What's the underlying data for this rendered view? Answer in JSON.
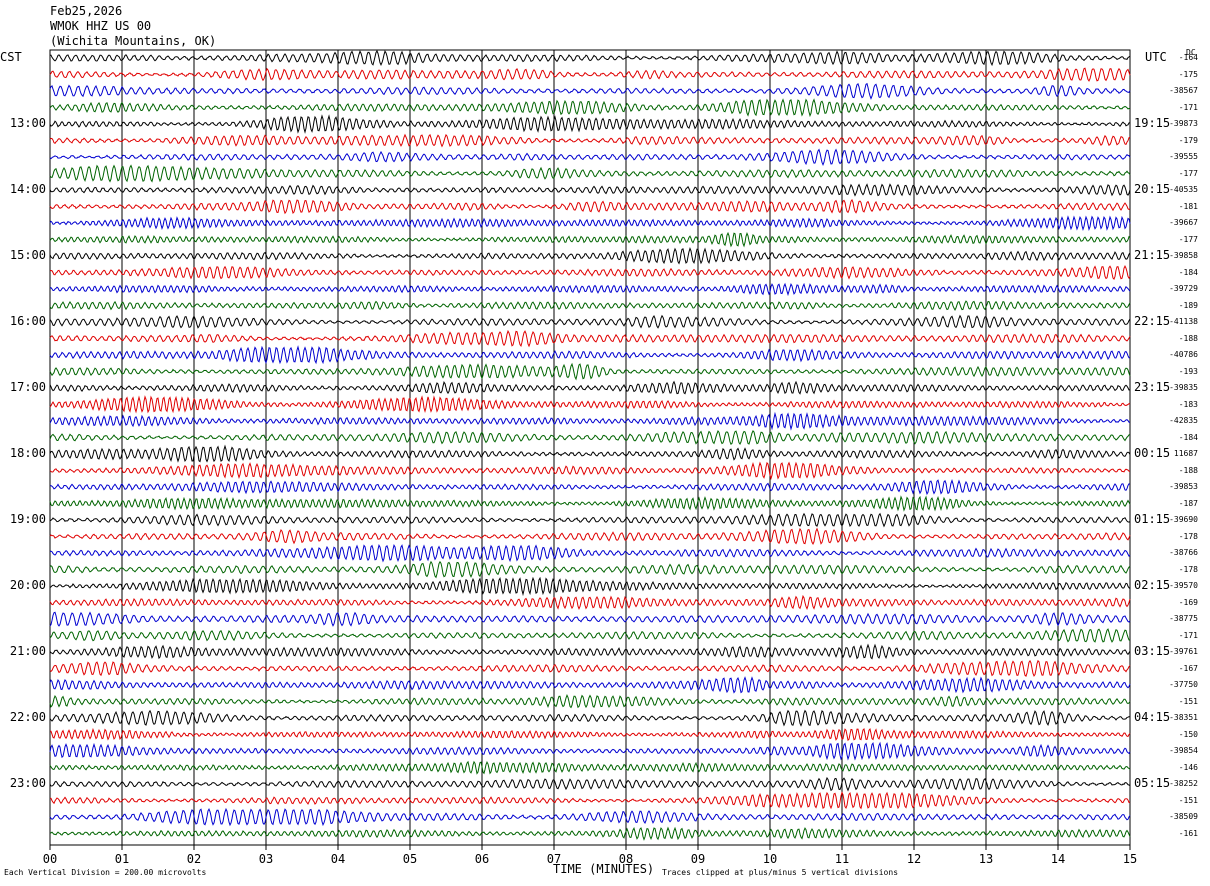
{
  "header": {
    "date": "Feb25,2026",
    "station": "WMOK HHZ US 00",
    "location": "(Wichita Mountains, OK)"
  },
  "left_tz": "CST",
  "right_tz": "UTC",
  "dc_label": "DC",
  "colors": {
    "trace": [
      "#000000",
      "#e00000",
      "#0000d0",
      "#006400"
    ],
    "grid": "#000000"
  },
  "chart_data": {
    "type": "line",
    "title": "Feb25,2026 WMOK HHZ US 00 (Wichita Mountains, OK)",
    "xlabel": "TIME (MINUTES)",
    "x_ticks": [
      "00",
      "01",
      "02",
      "03",
      "04",
      "05",
      "06",
      "07",
      "08",
      "09",
      "10",
      "11",
      "12",
      "13",
      "14",
      "15"
    ],
    "xlim": [
      0,
      15
    ],
    "traces_per_hour": 4,
    "n_traces": 48,
    "left_hour_labels": [
      "13:00",
      "14:00",
      "15:00",
      "16:00",
      "17:00",
      "18:00",
      "19:00",
      "20:00",
      "21:00",
      "22:00",
      "23:00"
    ],
    "right_hour_labels": [
      "19:15",
      "20:15",
      "21:15",
      "22:15",
      "23:15",
      "00:15",
      "01:15",
      "02:15",
      "03:15",
      "04:15",
      "05:15"
    ],
    "dc_offsets": [
      "-164",
      "-175",
      "-38567",
      "-171",
      "-39873",
      "-179",
      "-39555",
      "-177",
      "-40535",
      "-181",
      "-39667",
      "-177",
      "-39858",
      "-184",
      "-39729",
      "-189",
      "-41138",
      "-188",
      "-40786",
      "-193",
      "-39835",
      "-183",
      "-42835",
      "-184",
      "11687",
      "-188",
      "-39853",
      "-187",
      "-39690",
      "-178",
      "-38766",
      "-178",
      "-39570",
      "-169",
      "-38775",
      "-171",
      "-39761",
      "-167",
      "-37750",
      "-151",
      "-38351",
      "-150",
      "-39854",
      "-146",
      "-38252",
      "-151",
      "-38509",
      "-161"
    ],
    "trace_color_cycle": [
      "black",
      "red",
      "blue",
      "green"
    ]
  },
  "footer": {
    "scale": "Each Vertical Division =  200.00 microvolts",
    "clip": "Traces clipped at plus/minus 5 vertical divisions"
  }
}
